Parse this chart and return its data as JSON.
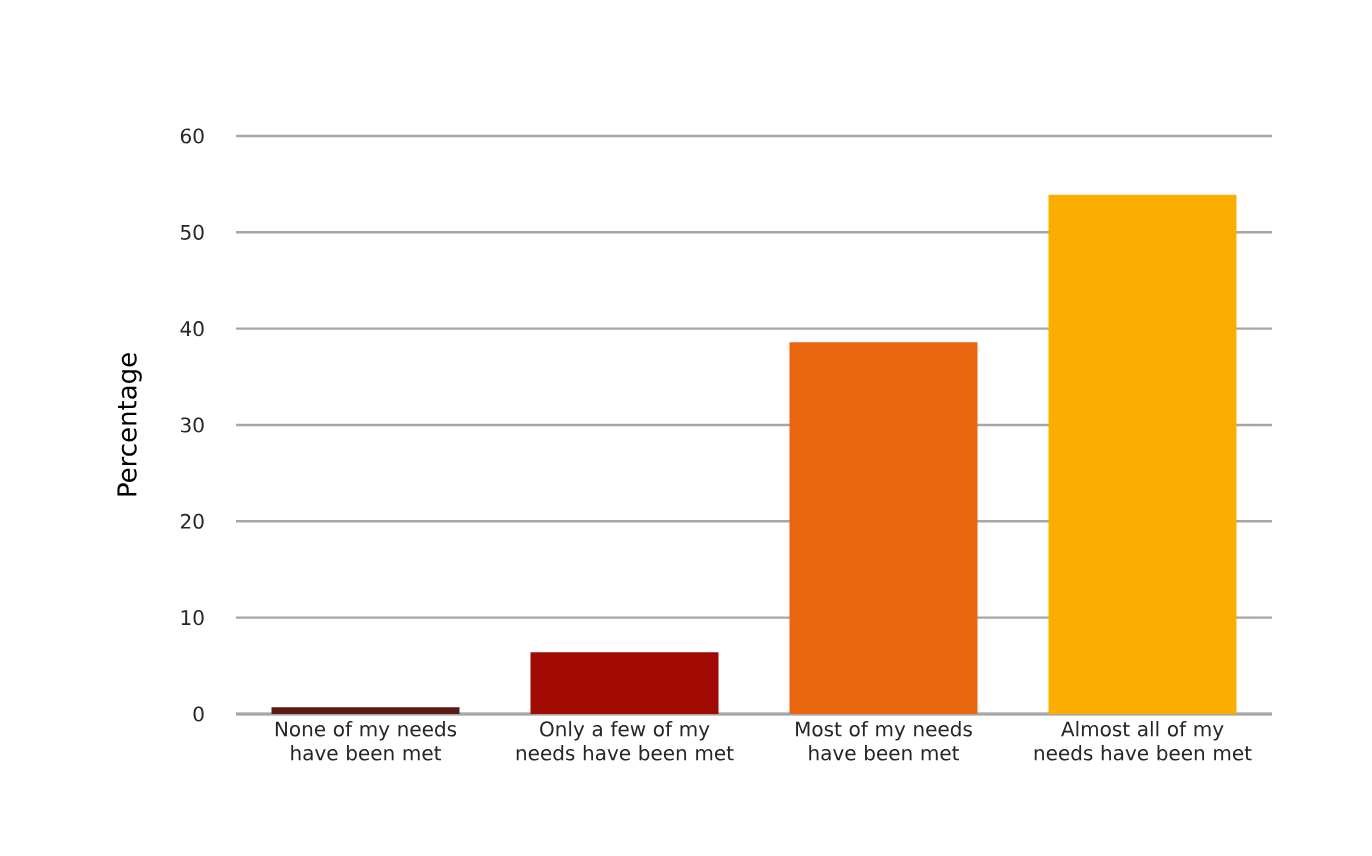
{
  "chart_data": {
    "type": "bar",
    "ylabel": "Percentage",
    "categories": [
      "None of my needs have been met",
      "Only a few of my needs have been met",
      "Most of my needs have been met",
      "Almost all of my needs have been met"
    ],
    "values": [
      0.7,
      6.4,
      38.6,
      53.9
    ],
    "colors": [
      "#5c1a14",
      "#a00a00",
      "#e96510",
      "#fbae00"
    ],
    "ylim": [
      0,
      60
    ],
    "yticks": [
      0,
      10,
      20,
      30,
      40,
      50,
      60
    ],
    "grid": "y"
  }
}
